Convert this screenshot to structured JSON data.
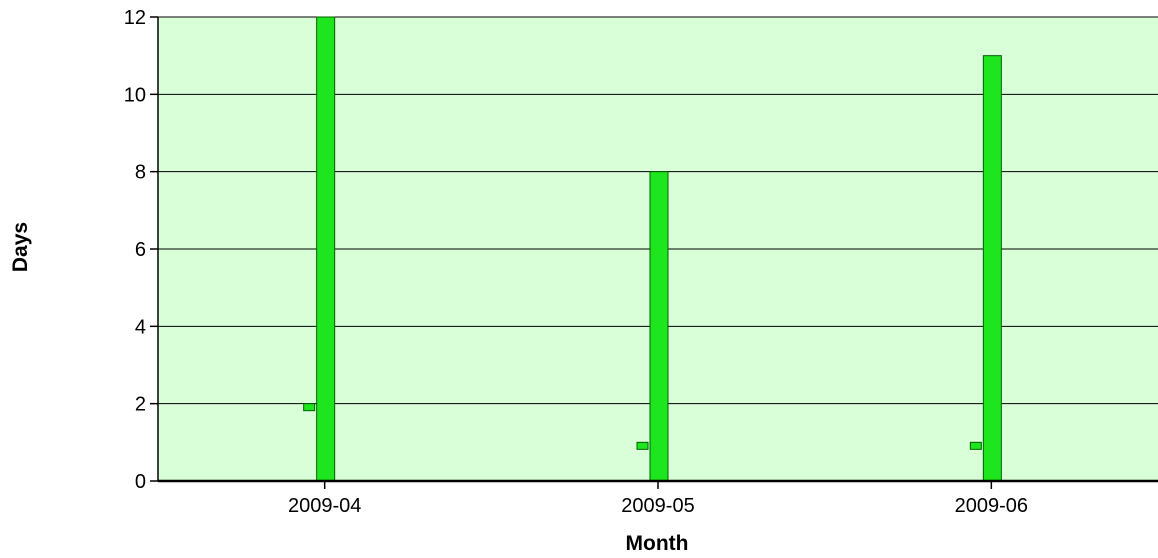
{
  "chart_data": {
    "type": "bar",
    "title": "",
    "xlabel": "Month",
    "ylabel": "Days",
    "categories": [
      "2009-04",
      "2009-05",
      "2009-06"
    ],
    "series": [
      {
        "values": [
          2,
          1,
          1
        ]
      },
      {
        "values": [
          12,
          8,
          11
        ]
      }
    ],
    "ylim": [
      0,
      12
    ],
    "yticks": [
      0,
      2,
      4,
      6,
      8,
      10,
      12
    ],
    "grid": true,
    "legend": "none",
    "colors": {
      "plot_background": "#d9ffd9",
      "bar_fill": "#1ee61e",
      "bar_stroke": "#006000",
      "grid": "#000000",
      "axis": "#000000"
    }
  }
}
